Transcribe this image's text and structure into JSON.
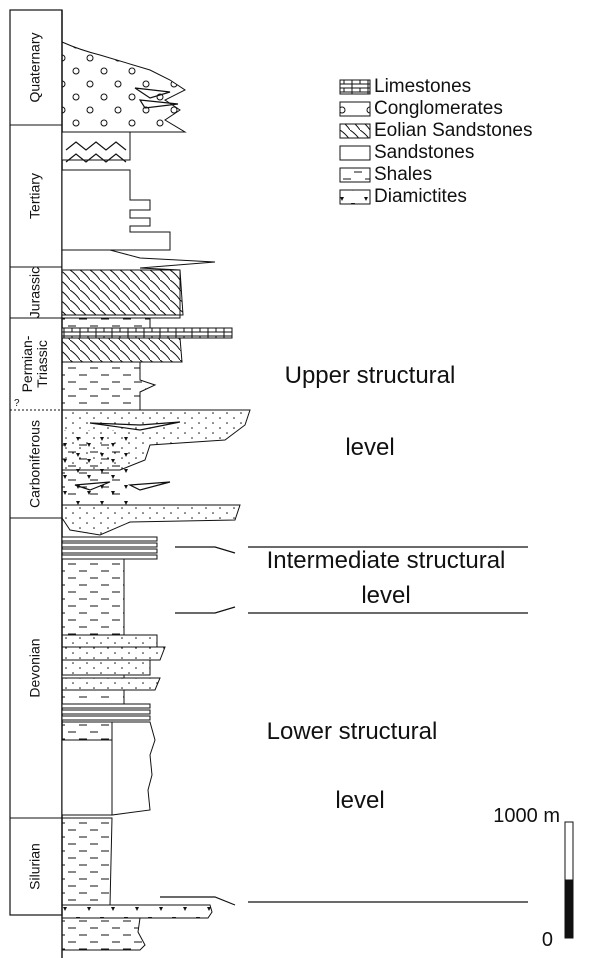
{
  "periods": [
    {
      "lines": [
        "Quaternary"
      ]
    },
    {
      "lines": [
        "Tertiary"
      ]
    },
    {
      "lines": [
        "Jurassic"
      ]
    },
    {
      "lines": [
        "Permian-",
        "Triassic"
      ]
    },
    {
      "lines": [
        "Carboniferous"
      ]
    },
    {
      "lines": [
        "Devonian"
      ]
    },
    {
      "lines": [
        "Silurian"
      ]
    }
  ],
  "uncertain_mark": "?",
  "legend": [
    "Limestones",
    "Conglomerates",
    "Eolian Sandstones",
    "Sandstones",
    "Shales",
    "Diamictites"
  ],
  "levels": [
    {
      "lines": [
        "Upper structural",
        "level"
      ]
    },
    {
      "lines": [
        "Intermediate structural",
        "level"
      ]
    },
    {
      "lines": [
        "Lower structural",
        "level"
      ]
    }
  ],
  "scale": {
    "top": "1000 m",
    "bottom": "0"
  }
}
